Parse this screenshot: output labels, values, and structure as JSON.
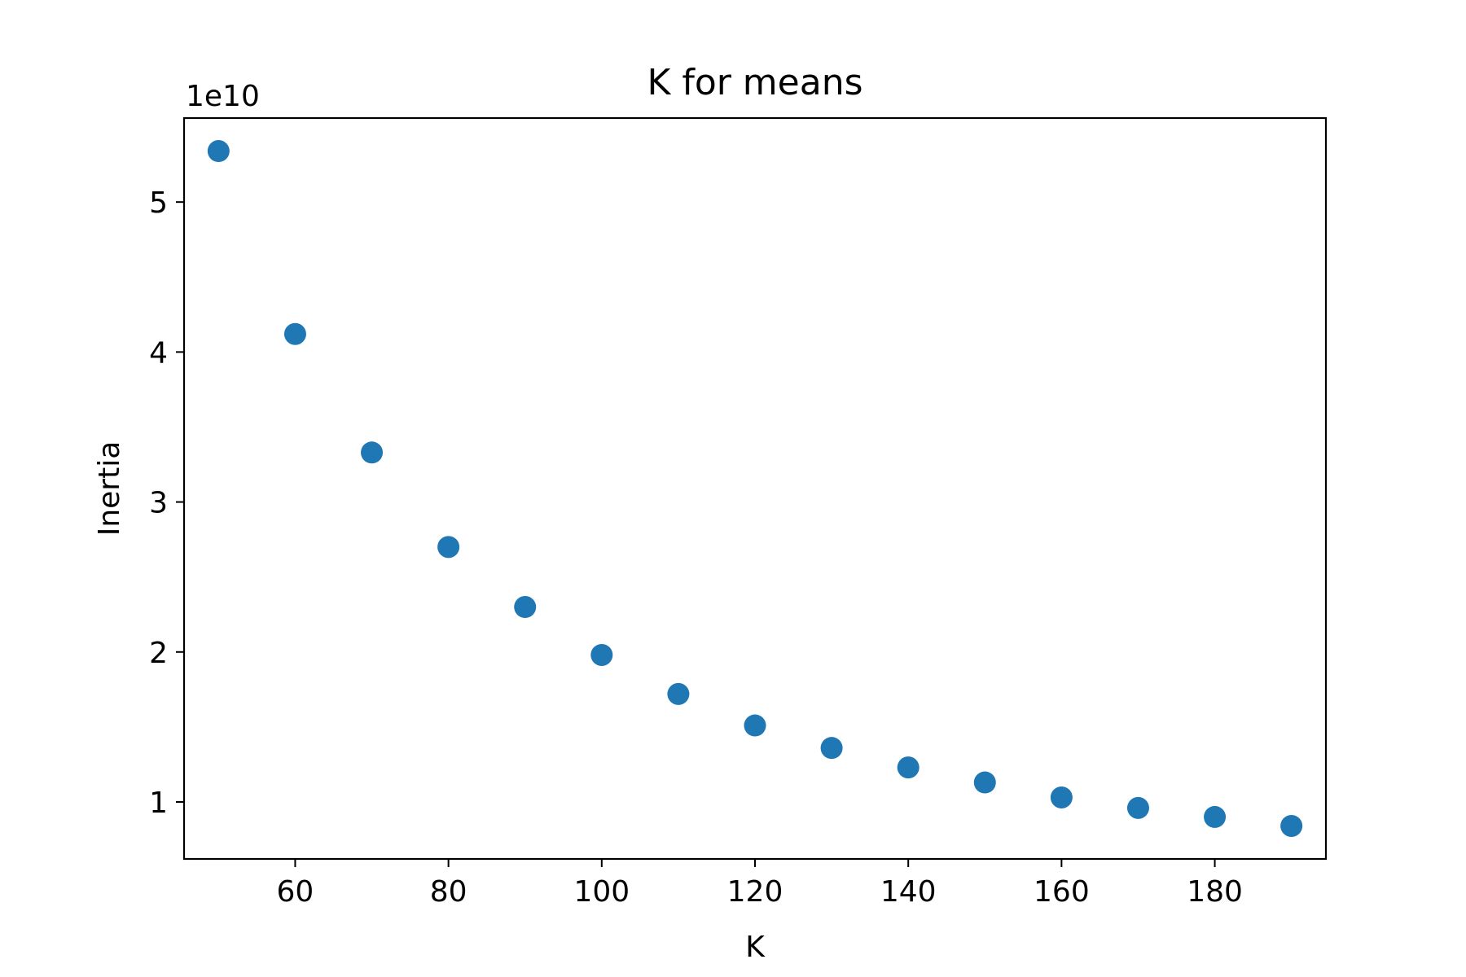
{
  "chart_data": {
    "type": "scatter",
    "title": "K for means",
    "xlabel": "K",
    "ylabel": "Inertia",
    "y_offset_label": "1e10",
    "xlim": [
      45.5,
      194.5
    ],
    "ylim": [
      0.62,
      5.56
    ],
    "x_ticks": [
      60,
      80,
      100,
      120,
      140,
      160,
      180
    ],
    "x_tick_labels": [
      "60",
      "80",
      "100",
      "120",
      "140",
      "160",
      "180"
    ],
    "y_ticks": [
      1,
      2,
      3,
      4,
      5
    ],
    "y_tick_labels": [
      "1",
      "2",
      "3",
      "4",
      "5"
    ],
    "grid": false,
    "series": [
      {
        "name": "inertia",
        "color": "#1f77b4",
        "x": [
          50,
          60,
          70,
          80,
          90,
          100,
          110,
          120,
          130,
          140,
          150,
          160,
          170,
          180,
          190
        ],
        "y": [
          5.34,
          4.12,
          3.33,
          2.7,
          2.3,
          1.98,
          1.72,
          1.51,
          1.36,
          1.23,
          1.13,
          1.03,
          0.96,
          0.9,
          0.84
        ]
      }
    ]
  }
}
